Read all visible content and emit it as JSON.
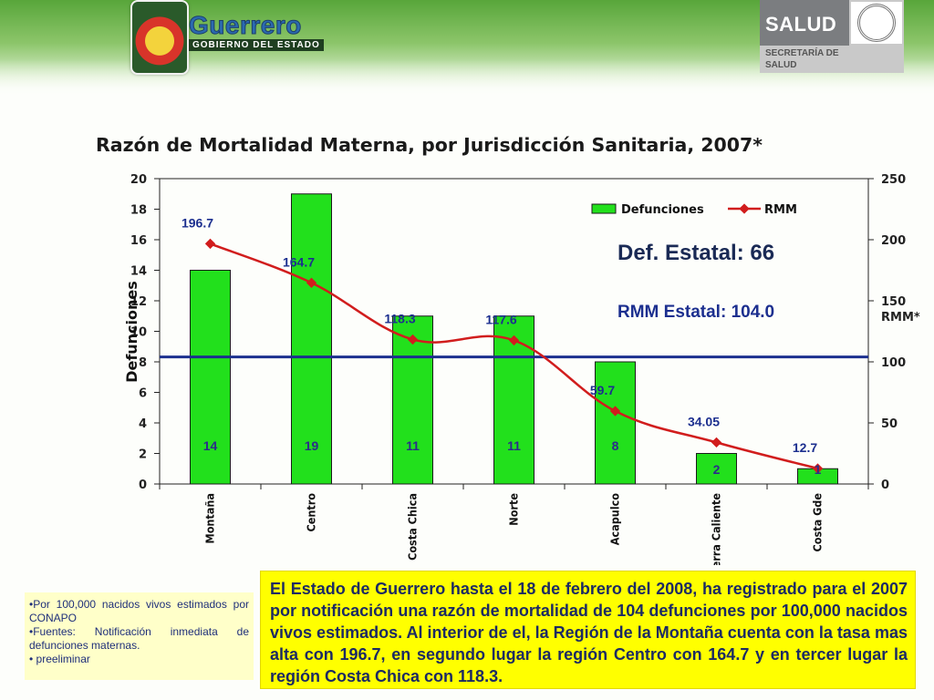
{
  "header": {
    "logo_left_name": "Guerrero",
    "logo_left_sub": "GOBIERNO DEL ESTADO",
    "logo_right_salud": "SALUD",
    "logo_right_secretaria": "SECRETARÍA DE SALUD"
  },
  "colors": {
    "bar_fill": "#22e01c",
    "bar_stroke": "#1b1b1b",
    "rmm_line": "#d11d1d",
    "reference_line": "#1c2f8f",
    "label_blue": "#1c2f8f",
    "bar_label_green": "#2c2c8a",
    "summary_bg": "#ffff00",
    "notes_bg": "#ffffc9"
  },
  "chart_data": {
    "type": "bar",
    "title": "Razón de Mortalidad Materna, por Jurisdicción Sanitaria, 2007*",
    "ylabel": "Defunciones",
    "ylabel_right": "RMM*",
    "ylim": [
      0,
      20
    ],
    "y_ticks": [
      0,
      2,
      4,
      6,
      8,
      10,
      12,
      14,
      16,
      18,
      20
    ],
    "ylim_right": [
      0,
      250
    ],
    "y_ticks_right": [
      0,
      50,
      100,
      150,
      200,
      250
    ],
    "grid": false,
    "legend_position": "top-right",
    "categories": [
      "Montaña",
      "Centro",
      "Costa Chica",
      "Norte",
      "Acapulco",
      "Tierra Caliente",
      "Costa Gde"
    ],
    "series": [
      {
        "name": "Defunciones",
        "type": "bar",
        "axis": "left",
        "values": [
          14,
          19,
          11,
          11,
          8,
          2,
          1
        ],
        "labels": [
          "14",
          "19",
          "11",
          "11",
          "8",
          "2",
          "1"
        ]
      },
      {
        "name": "RMM",
        "type": "line",
        "axis": "right",
        "values": [
          196.7,
          164.7,
          118.3,
          117.6,
          59.7,
          34.05,
          12.7
        ],
        "labels": [
          "196.7",
          "164.7",
          "118.3",
          "117.6",
          "59.7",
          "34.05",
          "12.7"
        ]
      }
    ],
    "reference_line": {
      "value": 104.0,
      "axis": "right"
    },
    "annotations": {
      "def_estatal": "Def. Estatal: 66",
      "rmm_estatal": "RMM Estatal: 104.0"
    }
  },
  "notes": {
    "lines": [
      "•Por 100,000 nacidos vivos estimados por CONAPO",
      "•Fuentes: Notificación inmediata de defunciones maternas.",
      "• preeliminar"
    ]
  },
  "summary": {
    "text": "El Estado de Guerrero hasta el 18 de febrero del 2008, ha registrado para el 2007 por notificación una razón de mortalidad de 104 defunciones por 100,000 nacidos vivos estimados. Al interior de el, la Región de la Montaña cuenta con la tasa mas alta con 196.7, en segundo lugar la región Centro con 164.7 y en tercer lugar la región Costa Chica con 118.3."
  }
}
